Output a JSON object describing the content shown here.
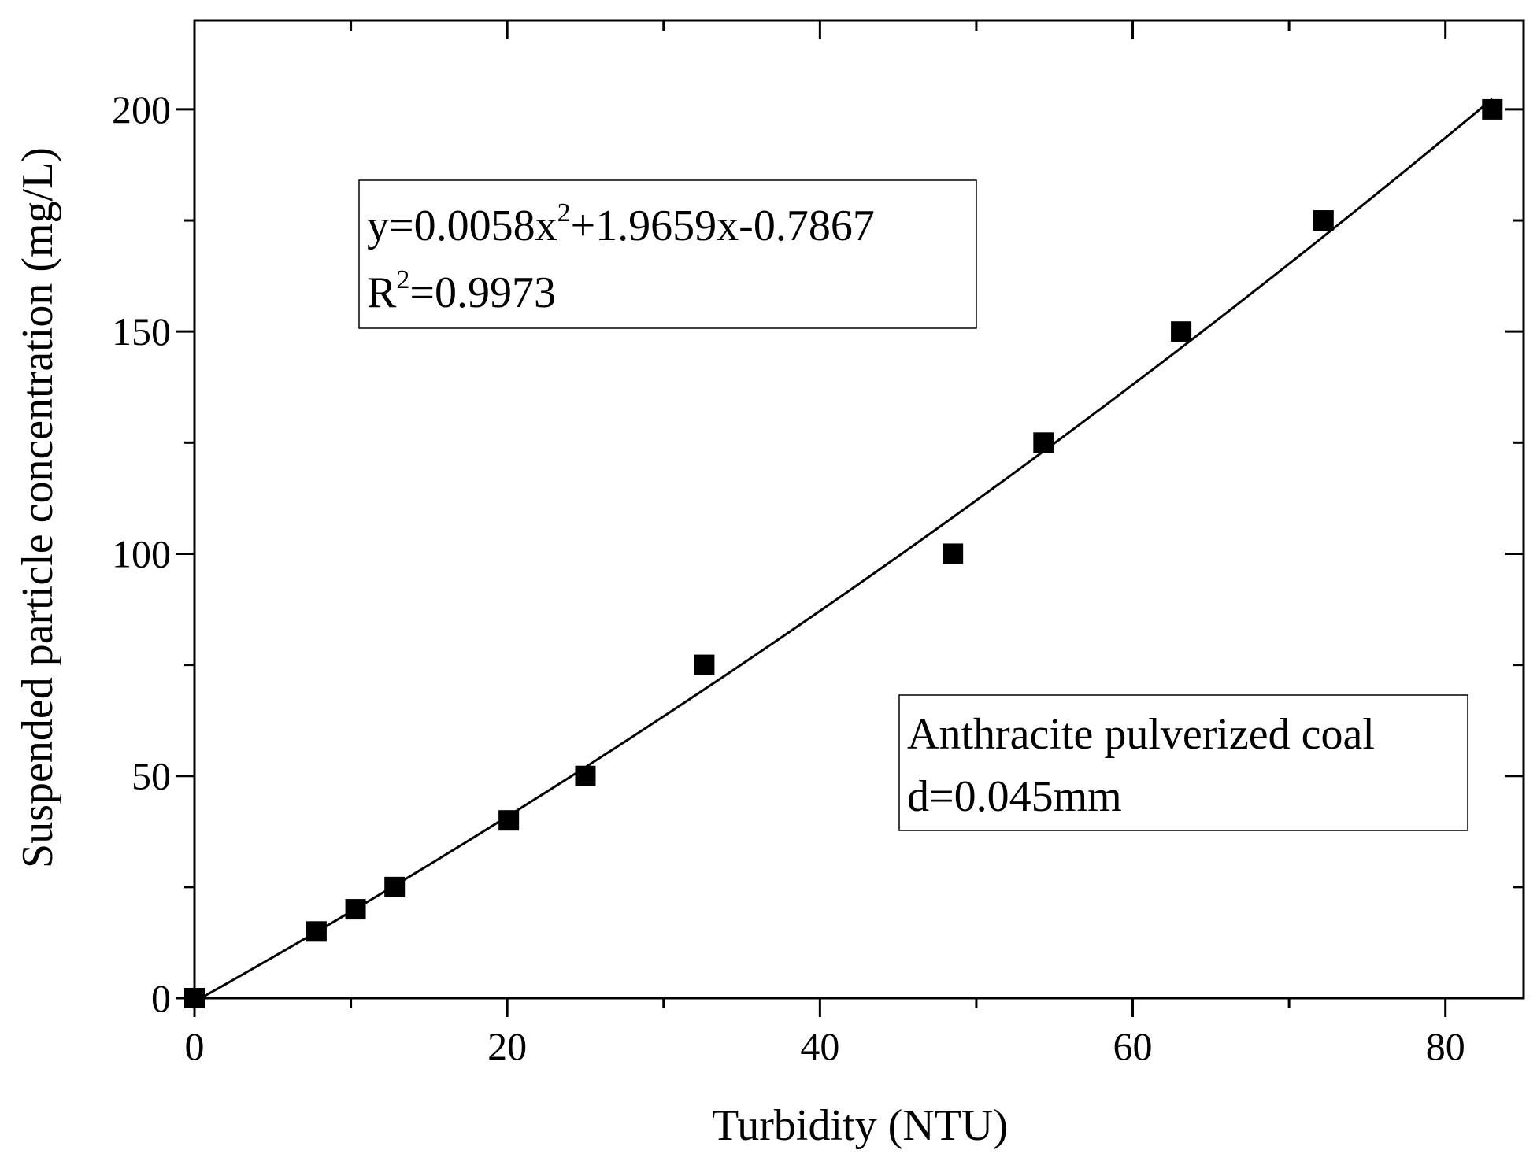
{
  "chart_data": {
    "type": "scatter",
    "title": "",
    "xlabel": "Turbidity (NTU)",
    "ylabel": "Suspended particle concentration (mg/L)",
    "xlim": [
      0,
      85
    ],
    "ylim": [
      0,
      220
    ],
    "x_ticks": [
      0,
      20,
      40,
      60,
      80
    ],
    "x_tick_labels": [
      "0",
      "20",
      "40",
      "60",
      "80"
    ],
    "y_ticks": [
      0,
      50,
      100,
      150,
      200
    ],
    "y_tick_labels": [
      "0",
      "50",
      "100",
      "150",
      "200"
    ],
    "x_minor_ticks": [
      10,
      30,
      50,
      70
    ],
    "y_minor_ticks": [
      25,
      75,
      125,
      175
    ],
    "grid": false,
    "series": [
      {
        "marker": "square",
        "color": "#000000",
        "x": [
          0,
          7.8,
          10.3,
          12.8,
          20.1,
          25.0,
          32.6,
          48.5,
          54.3,
          63.1,
          72.2,
          83.0
        ],
        "y": [
          0,
          15,
          20,
          25,
          40,
          50,
          75,
          100,
          125,
          150,
          175,
          200
        ]
      }
    ],
    "fit": {
      "type": "polynomial",
      "coefficients": {
        "a": 0.0058,
        "b": 1.9659,
        "c": -0.7867
      },
      "x_range": [
        0.4,
        83
      ],
      "color": "#000000"
    },
    "annotations": {
      "equation": {
        "prefix": "y=0.0058x",
        "exp": "2",
        "suffix": "+1.9659x-0.7867"
      },
      "r_squared": {
        "prefix": "R",
        "exp": "2",
        "suffix": "=0.9973"
      },
      "material_line1": "Anthracite pulverized coal",
      "material_line2": "d=0.045mm"
    }
  }
}
